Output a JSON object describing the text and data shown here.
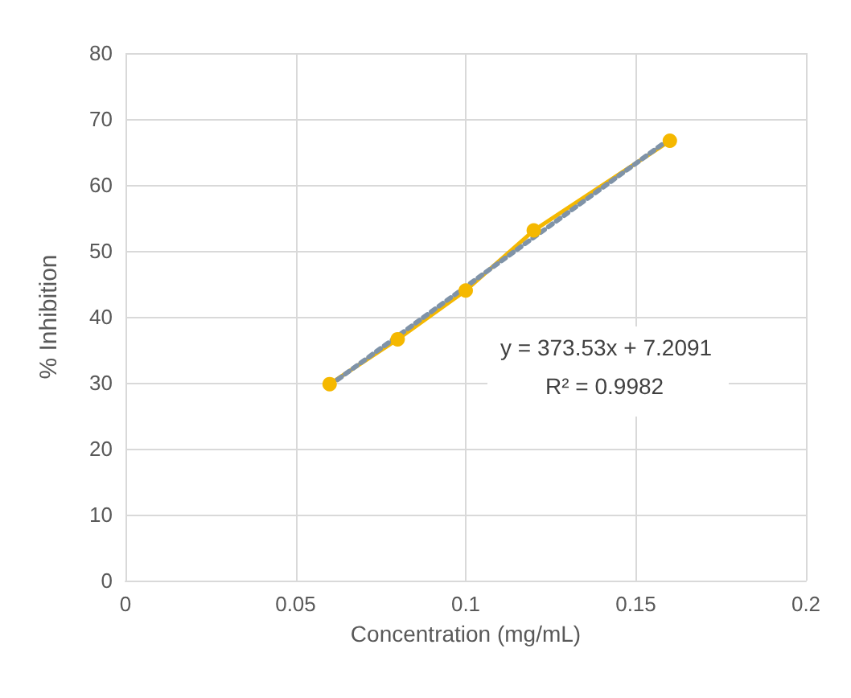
{
  "chart_data": {
    "type": "line",
    "xlabel": "Concentration (mg/mL)",
    "ylabel": "% Inhibition",
    "xlim": [
      0,
      0.2
    ],
    "xticks": [
      0,
      0.05,
      0.1,
      0.15,
      0.2
    ],
    "ylim": [
      0,
      80
    ],
    "yticks": [
      0,
      10,
      20,
      30,
      40,
      50,
      60,
      70,
      80
    ],
    "grid": true,
    "series": [
      {
        "color": "#f5b800",
        "marker": "circle",
        "line_style": "solid",
        "x": [
          0.06,
          0.08,
          0.1,
          0.12,
          0.16
        ],
        "values": [
          29.8,
          36.6,
          44,
          53.1,
          66.7
        ]
      },
      {
        "color": "#7f93a8",
        "marker": "none",
        "line_style": "dotted",
        "x": [
          0.06,
          0.16
        ],
        "values": [
          29.6,
          67
        ]
      }
    ],
    "annotations": [
      "y = 373.53x + 7.2091",
      "R² = 0.9982"
    ]
  }
}
